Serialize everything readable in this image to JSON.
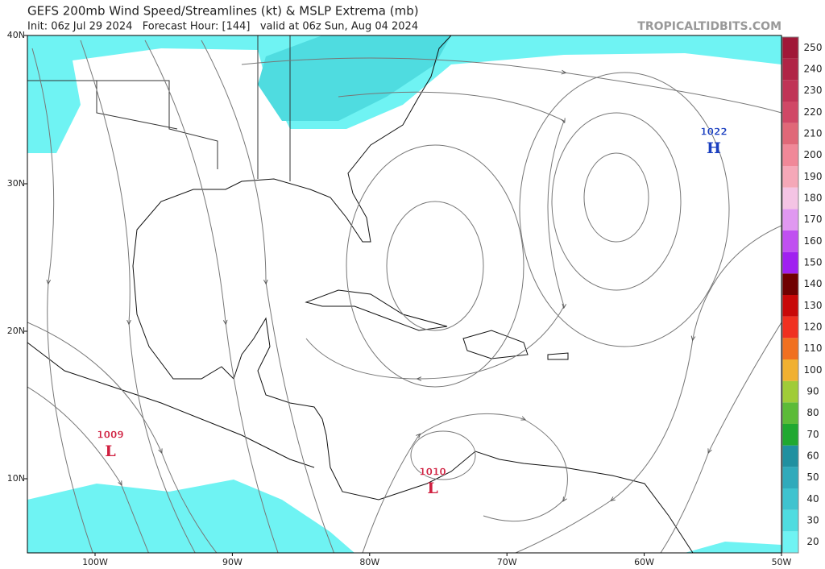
{
  "header": {
    "title": "GEFS 200mb Wind Speed/Streamlines (kt) & MSLP Extrema (mb)",
    "subtitle": "Init: 06z Jul 29 2024   Forecast Hour: [144]   valid at 06z Sun, Aug 04 2024",
    "source": "TROPICALTIDBITS.COM"
  },
  "map": {
    "lat_labels": [
      "40N",
      "30N",
      "20N",
      "10N"
    ],
    "lon_labels": [
      "100W",
      "90W",
      "80W",
      "70W",
      "60W",
      "50W"
    ],
    "extrema": [
      {
        "pressure": "1022",
        "center": "H"
      },
      {
        "pressure": "1009",
        "center": "L"
      },
      {
        "pressure": "1010",
        "center": "L"
      }
    ]
  },
  "colorbar": {
    "levels": [
      {
        "value": 20,
        "color": "#6ff3f3"
      },
      {
        "value": 30,
        "color": "#4fdce0"
      },
      {
        "value": 40,
        "color": "#3fc3cf"
      },
      {
        "value": 50,
        "color": "#30aabb"
      },
      {
        "value": 60,
        "color": "#2090a0"
      },
      {
        "value": 70,
        "color": "#20a830"
      },
      {
        "value": 80,
        "color": "#5cbb38"
      },
      {
        "value": 90,
        "color": "#a0cc38"
      },
      {
        "value": 100,
        "color": "#f0b030"
      },
      {
        "value": 110,
        "color": "#f07020"
      },
      {
        "value": 120,
        "color": "#f03020"
      },
      {
        "value": 130,
        "color": "#c80808"
      },
      {
        "value": 140,
        "color": "#700000"
      },
      {
        "value": 150,
        "color": "#a020f0"
      },
      {
        "value": 160,
        "color": "#c050f0"
      },
      {
        "value": 170,
        "color": "#e098f0"
      },
      {
        "value": 180,
        "color": "#f4c4e4"
      },
      {
        "value": 190,
        "color": "#f5a8b8"
      },
      {
        "value": 200,
        "color": "#f08898"
      },
      {
        "value": 210,
        "color": "#e06878"
      },
      {
        "value": 220,
        "color": "#d04866"
      },
      {
        "value": 230,
        "color": "#c03456"
      },
      {
        "value": 240,
        "color": "#b02446"
      },
      {
        "value": 250,
        "color": "#a01838"
      }
    ]
  }
}
